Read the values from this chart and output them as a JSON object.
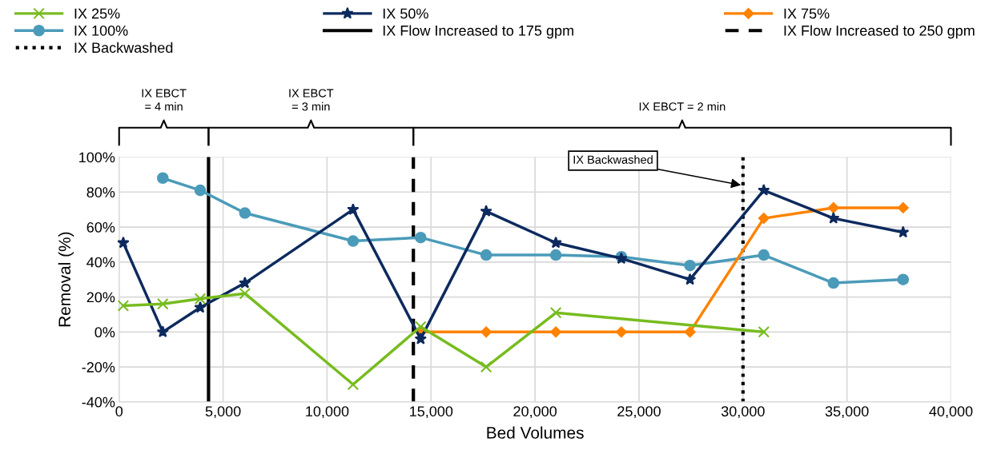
{
  "chart_data": {
    "type": "line",
    "xlabel": "Bed Volumes",
    "ylabel": "Removal (%)",
    "xlim": [
      0,
      40000
    ],
    "ylim": [
      -40,
      100
    ],
    "xticks": [
      {
        "value": 0,
        "label": "0"
      },
      {
        "value": 5000,
        "label": "5,000"
      },
      {
        "value": 10000,
        "label": "10,000"
      },
      {
        "value": 15000,
        "label": "15,000"
      },
      {
        "value": 20000,
        "label": "20,000"
      },
      {
        "value": 25000,
        "label": "25,000"
      },
      {
        "value": 30000,
        "label": "30,000"
      },
      {
        "value": 35000,
        "label": "35,000"
      },
      {
        "value": 40000,
        "label": "40,000"
      }
    ],
    "yticks": [
      {
        "value": -40,
        "label": "-40%"
      },
      {
        "value": -20,
        "label": "-20%"
      },
      {
        "value": 0,
        "label": "0%"
      },
      {
        "value": 20,
        "label": "20%"
      },
      {
        "value": 40,
        "label": "40%"
      },
      {
        "value": 60,
        "label": "60%"
      },
      {
        "value": 80,
        "label": "80%"
      },
      {
        "value": 100,
        "label": "100%"
      }
    ],
    "grid": true,
    "legend": "top",
    "series": [
      {
        "name": "IX 25%",
        "color": "#77bc1f",
        "marker": "cross",
        "x": [
          200,
          2100,
          3900,
          6050,
          11250,
          14500,
          17650,
          21000,
          31000
        ],
        "values": [
          15,
          16,
          19,
          22,
          -30,
          3,
          -20,
          11,
          0
        ]
      },
      {
        "name": "IX 50%",
        "color": "#0d2a5e",
        "marker": "star",
        "x": [
          200,
          2100,
          3900,
          6050,
          11250,
          14500,
          17650,
          21000,
          24150,
          27450,
          31000,
          34350,
          37700
        ],
        "values": [
          51,
          0,
          14,
          28,
          70,
          -4,
          69,
          51,
          42,
          30,
          81,
          65,
          57
        ]
      },
      {
        "name": "IX 75%",
        "color": "#ff8200",
        "marker": "diamond",
        "x": [
          14500,
          17650,
          21000,
          24150,
          27450,
          31000,
          34350,
          37700
        ],
        "values": [
          0,
          0,
          0,
          0,
          0,
          65,
          71,
          71
        ]
      },
      {
        "name": "IX 100%",
        "color": "#4a9bb9",
        "marker": "circle",
        "x": [
          2100,
          3900,
          6050,
          11250,
          14500,
          17650,
          21000,
          24150,
          27450,
          31000,
          34350,
          37700
        ],
        "values": [
          88,
          81,
          68,
          52,
          54,
          44,
          44,
          43,
          38,
          44,
          28,
          30
        ]
      }
    ],
    "ref_lines": [
      {
        "axis": "x",
        "value": 4300,
        "label": "IX Flow Increased to 175 gpm",
        "color": "#000000",
        "line_style": "solid"
      },
      {
        "axis": "x",
        "value": 14150,
        "label": "IX Flow Increased to 250 gpm",
        "color": "#000000",
        "line_style": "dashed"
      },
      {
        "axis": "x",
        "value": 30000,
        "label": "IX Backwashed",
        "color": "#000000",
        "line_style": "dotted"
      }
    ],
    "annotations": [
      "IX EBCT\n= 4 min",
      "IX EBCT\n= 3 min",
      "IX EBCT = 2 min",
      {
        "text": "IX Backwashed",
        "x": 29900,
        "y": 84
      }
    ]
  }
}
